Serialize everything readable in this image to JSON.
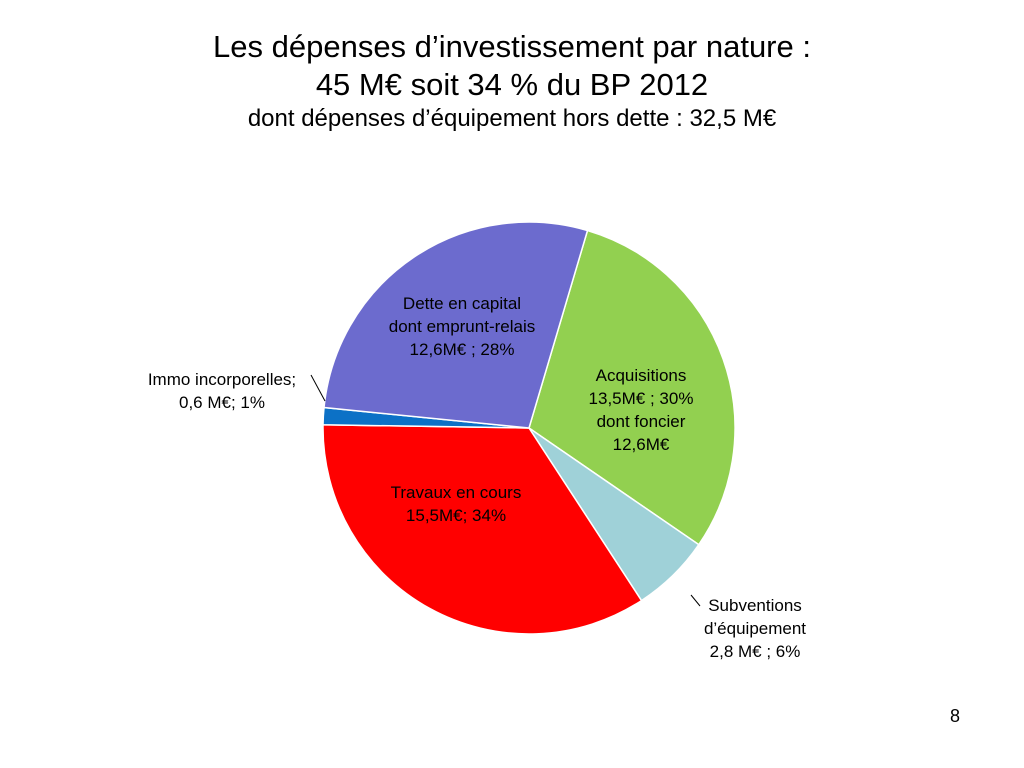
{
  "slide": {
    "title_line1": "Les dépenses d’investissement par nature :",
    "title_line2": "45 M€ soit 34 % du BP 2012",
    "subtitle": "dont dépenses d’équipement hors dette : 32,5 M€",
    "page_number": "8"
  },
  "chart_data": {
    "type": "pie",
    "start_direction": "top-right",
    "clockwise": true,
    "slices": [
      {
        "label": "Acquisitions",
        "value": 13.5,
        "percent": 30,
        "color": "#92d050",
        "label_lines": [
          "Acquisitions",
          "13,5M€ ; 30%",
          "dont foncier",
          "12,6M€"
        ]
      },
      {
        "label": "Subventions d’équipement",
        "value": 2.8,
        "percent": 6,
        "color": "#9fd1d8",
        "label_lines": [
          "Subventions",
          "d’équipement",
          "2,8 M€ ; 6%"
        ]
      },
      {
        "label": "Travaux en cours",
        "value": 15.5,
        "percent": 34,
        "color": "#ff0000",
        "label_lines": [
          "Travaux en cours",
          "15,5M€; 34%"
        ]
      },
      {
        "label": "Immo incorporelles",
        "value": 0.6,
        "percent": 1,
        "color": "#0c71c6",
        "label_lines": [
          "Immo incorporelles;",
          "0,6 M€; 1%"
        ]
      },
      {
        "label": "Dette en capital dont emprunt-relais",
        "value": 12.6,
        "percent": 28,
        "color": "#6c6bce",
        "label_lines": [
          "Dette en capital",
          "dont emprunt-relais",
          "12,6M€ ; 28%"
        ]
      }
    ]
  }
}
